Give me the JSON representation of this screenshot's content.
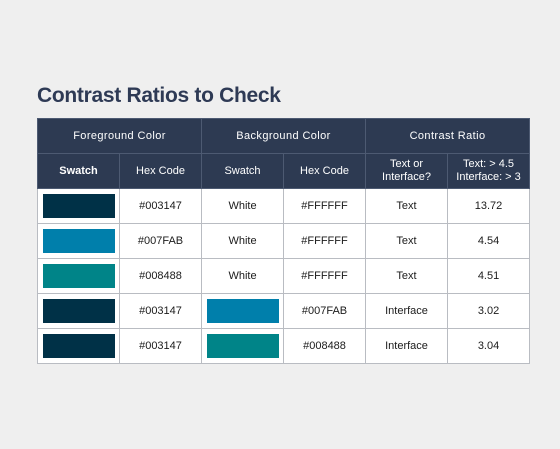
{
  "title": "Contrast Ratios to Check",
  "groups": {
    "foreground": "Foreground Color",
    "background": "Background Color",
    "contrast": "Contrast Ratio"
  },
  "columns": {
    "fg_swatch": "Swatch",
    "fg_hex": "Hex Code",
    "bg_swatch": "Swatch",
    "bg_hex": "Hex Code",
    "type_line1": "Text or",
    "type_line2": "Interface?",
    "ratio_line1": "Text: > 4.5",
    "ratio_line2": "Interface: > 3"
  },
  "rows": [
    {
      "fg_color": "#003147",
      "fg_hex": "#003147",
      "bg_label": "White",
      "bg_hex": "#FFFFFF",
      "type": "Text",
      "ratio": "13.72"
    },
    {
      "fg_color": "#007FAB",
      "fg_hex": "#007FAB",
      "bg_label": "White",
      "bg_hex": "#FFFFFF",
      "type": "Text",
      "ratio": "4.54"
    },
    {
      "fg_color": "#008488",
      "fg_hex": "#008488",
      "bg_label": "White",
      "bg_hex": "#FFFFFF",
      "type": "Text",
      "ratio": "4.51"
    },
    {
      "fg_color": "#003147",
      "fg_hex": "#003147",
      "bg_color": "#007FAB",
      "bg_hex": "#007FAB",
      "type": "Interface",
      "ratio": "3.02"
    },
    {
      "fg_color": "#003147",
      "fg_hex": "#003147",
      "bg_color": "#008488",
      "bg_hex": "#008488",
      "type": "Interface",
      "ratio": "3.04"
    }
  ]
}
